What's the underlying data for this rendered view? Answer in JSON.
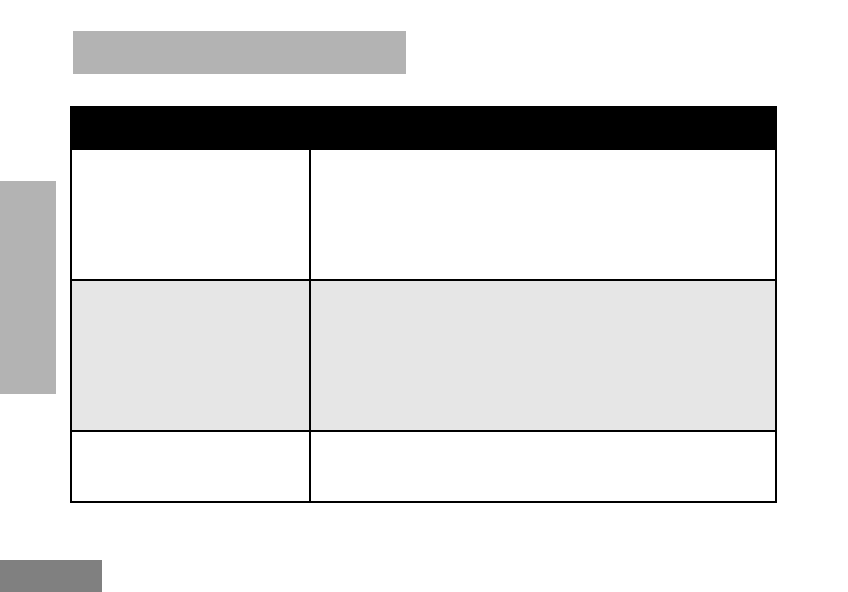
{
  "colors": {
    "title_bar": "#b3b3b3",
    "side_tab": "#b3b3b3",
    "page_tab": "#808080",
    "table_header": "#000000",
    "shaded_row": "#e6e6e6",
    "background": "#ffffff"
  }
}
